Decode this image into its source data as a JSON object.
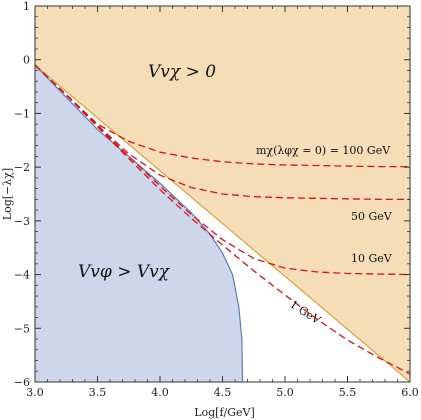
{
  "chart_data": {
    "type": "area",
    "xlabel": "Log[f/GeV]",
    "ylabel": "Log[−λχ]",
    "xlim": [
      3.0,
      6.0
    ],
    "ylim": [
      -6,
      1
    ],
    "xticks": [
      "3.0",
      "3.5",
      "4.0",
      "4.5",
      "5.0",
      "5.5",
      "6.0"
    ],
    "yticks": [
      "1",
      "0",
      "−1",
      "−2",
      "−3",
      "−4",
      "−5",
      "−6"
    ],
    "grid": false,
    "colors": {
      "upper_region": "#f5ddb8",
      "upper_boundary": "#d9a23a",
      "lower_region": "#cdd6ea",
      "lower_boundary": "#5a7cc0",
      "dashed_curves": "#e01010"
    },
    "regions": [
      {
        "label": "V_{vχ} > 0",
        "display": "Vvχ > 0",
        "boundary": [
          [
            3.0,
            -0.1
          ],
          [
            6.0,
            -6.0
          ]
        ]
      },
      {
        "label": "V_{vφ} > V_{vχ}",
        "display": "Vvφ > Vvχ",
        "boundary": [
          [
            3.0,
            -0.1
          ],
          [
            3.5,
            -1.3
          ],
          [
            3.75,
            -1.8
          ],
          [
            4.0,
            -2.3
          ],
          [
            4.25,
            -2.85
          ],
          [
            4.4,
            -3.25
          ],
          [
            4.5,
            -3.6
          ],
          [
            4.58,
            -4.0
          ],
          [
            4.63,
            -4.6
          ],
          [
            4.655,
            -5.2
          ],
          [
            4.66,
            -6.0
          ]
        ]
      }
    ],
    "series": [
      {
        "name": "m_χ(λ_{φχ}=0) = 100 GeV",
        "label": "mχ(λφχ = 0) = 100 GeV",
        "style": "dashed",
        "x": [
          3.0,
          3.25,
          3.5,
          3.75,
          4.0,
          4.25,
          4.5,
          4.75,
          5.0,
          5.25,
          5.5,
          5.75,
          6.0
        ],
        "y": [
          -0.1,
          -0.65,
          -1.2,
          -1.52,
          -1.72,
          -1.83,
          -1.9,
          -1.94,
          -1.96,
          -1.97,
          -1.98,
          -1.99,
          -1.99
        ]
      },
      {
        "name": "50 GeV",
        "label": "50 GeV",
        "style": "dashed",
        "x": [
          3.0,
          3.25,
          3.5,
          3.75,
          4.0,
          4.25,
          4.5,
          4.75,
          5.0,
          5.25,
          5.5,
          5.75,
          6.0
        ],
        "y": [
          -0.1,
          -0.65,
          -1.22,
          -1.75,
          -2.15,
          -2.38,
          -2.5,
          -2.55,
          -2.57,
          -2.58,
          -2.59,
          -2.6,
          -2.6
        ]
      },
      {
        "name": "10 GeV",
        "label": "10 GeV",
        "style": "dashed",
        "x": [
          3.0,
          3.25,
          3.5,
          3.75,
          4.0,
          4.25,
          4.5,
          4.75,
          5.0,
          5.25,
          5.5,
          5.75,
          6.0
        ],
        "y": [
          -0.1,
          -0.65,
          -1.23,
          -1.8,
          -2.35,
          -2.88,
          -3.35,
          -3.7,
          -3.88,
          -3.95,
          -3.98,
          -3.99,
          -4.0
        ]
      },
      {
        "name": "1 GeV",
        "label": "1 GeV",
        "style": "dashed",
        "x": [
          3.0,
          3.25,
          3.5,
          3.75,
          4.0,
          4.25,
          4.5,
          4.75,
          5.0,
          5.25,
          5.5,
          5.75,
          6.0
        ],
        "y": [
          -0.1,
          -0.66,
          -1.25,
          -1.84,
          -2.42,
          -2.95,
          -3.45,
          -3.93,
          -4.38,
          -4.82,
          -5.22,
          -5.55,
          -5.85
        ]
      }
    ]
  }
}
